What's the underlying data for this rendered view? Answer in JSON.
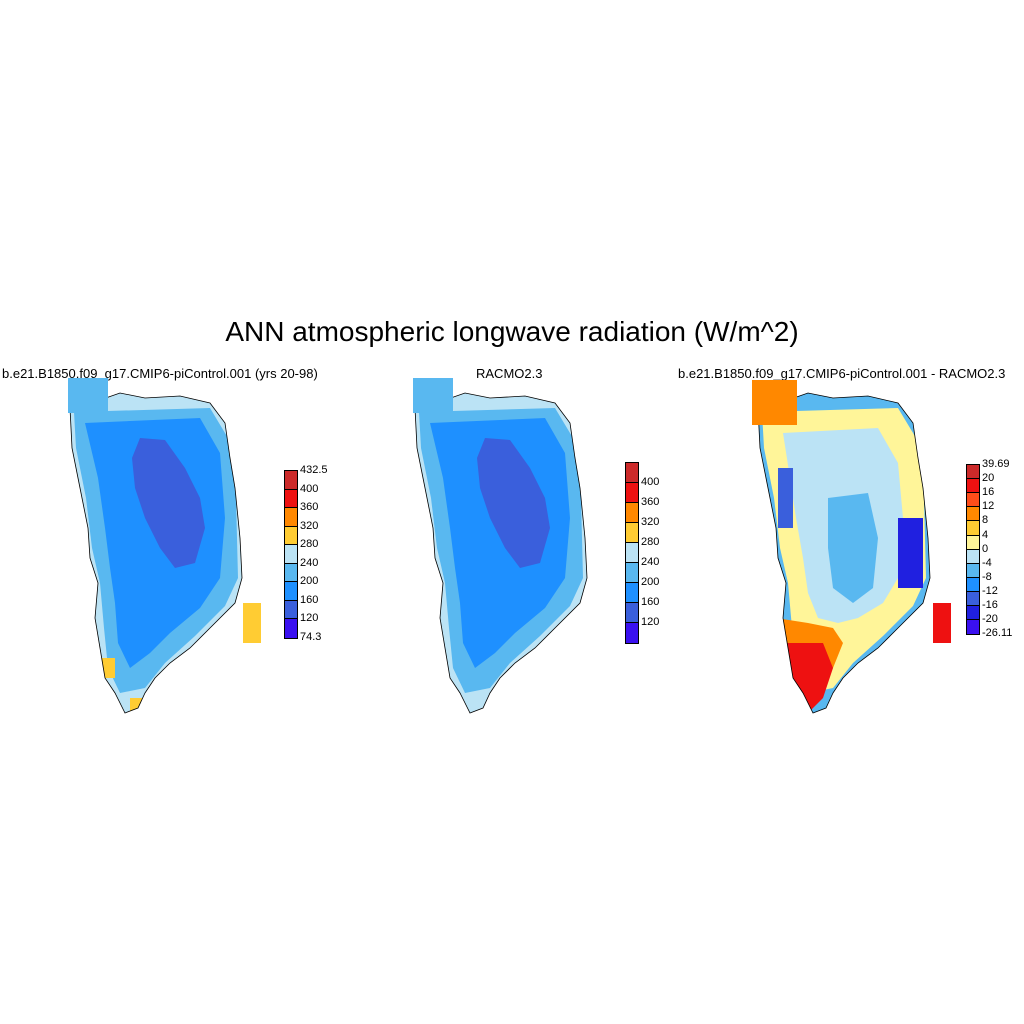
{
  "title": "ANN atmospheric longwave radiation (W/m^2)",
  "panels": [
    {
      "id": "model",
      "title": "b.e21.B1850.f09_g17.CMIP6-piControl.001 (yrs 20-98)",
      "colorbar": {
        "colors": [
          "#cc2a2a",
          "#ee1111",
          "#ff8800",
          "#ffcc33",
          "#bbe3f5",
          "#59b8f0",
          "#1e90ff",
          "#3a5fdc",
          "#3a10f0"
        ],
        "labels": [
          "432.5",
          "400",
          "360",
          "320",
          "280",
          "240",
          "200",
          "160",
          "120",
          "74.3"
        ]
      }
    },
    {
      "id": "obs",
      "title": "RACMO2.3",
      "colorbar": {
        "colors": [
          "#cc2a2a",
          "#ee1111",
          "#ff8800",
          "#ffcc33",
          "#bbe3f5",
          "#59b8f0",
          "#1e90ff",
          "#3a5fdc",
          "#3a10f0"
        ],
        "labels": [
          "400",
          "360",
          "320",
          "280",
          "240",
          "200",
          "160",
          "120"
        ]
      }
    },
    {
      "id": "diff",
      "title": "b.e21.B1850.f09_g17.CMIP6-piControl.001 - RACMO2.3",
      "colorbar": {
        "colors": [
          "#cc2a2a",
          "#ee1111",
          "#ff4d1a",
          "#ff8800",
          "#ffcc33",
          "#fff599",
          "#bbe3f5",
          "#59b8f0",
          "#1e90ff",
          "#3a5fdc",
          "#2020e0",
          "#3a10f0"
        ],
        "labels": [
          "39.69",
          "20",
          "16",
          "12",
          "8",
          "4",
          "0",
          "-4",
          "-8",
          "-12",
          "-16",
          "-20",
          "-26.11"
        ]
      }
    }
  ]
}
